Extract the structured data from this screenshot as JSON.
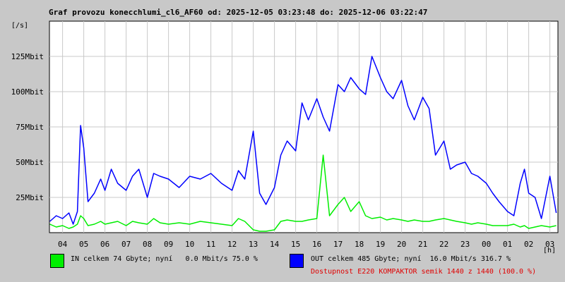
{
  "title": "Graf provozu konecchlumi_cl6_AF60 od: 2025-12-05 03:23:48 do: 2025-12-06 03:22:47",
  "y_unit": "[/s]",
  "x_unit": "[h]",
  "legend": {
    "in": {
      "text": "IN celkem 74 Gbyte; nyní   0.0 Mbit/s 75.0 %",
      "color": "#00ee00"
    },
    "out": {
      "text": "OUT celkem 485 Gbyte; nyní  16.0 Mbit/s 316.7 %",
      "color": "#0000ff"
    }
  },
  "availability": "Dostupnost E220 KOMPAKTOR semik 1440 z 1440 (100.0 %)",
  "chart_data": {
    "type": "line",
    "title": "Graf provozu konecchlumi_cl6_AF60 od: 2025-12-05 03:23:48 do: 2025-12-06 03:22:47",
    "xlabel": "[h]",
    "ylabel": "[/s]",
    "x_ticks": [
      "04",
      "05",
      "06",
      "07",
      "08",
      "09",
      "10",
      "11",
      "12",
      "13",
      "14",
      "15",
      "16",
      "17",
      "18",
      "19",
      "20",
      "21",
      "22",
      "23",
      "00",
      "01",
      "02",
      "03"
    ],
    "y_ticks": [
      "25Mbit",
      "50Mbit",
      "75Mbit",
      "100Mbit",
      "125Mbit"
    ],
    "ylim": [
      0,
      150
    ],
    "y_unit": "Mbit/s",
    "grid": true,
    "x_hours": [
      3.4,
      3.7,
      4.0,
      4.3,
      4.5,
      4.7,
      4.85,
      5.0,
      5.2,
      5.5,
      5.8,
      6.0,
      6.3,
      6.6,
      7.0,
      7.3,
      7.6,
      8.0,
      8.3,
      8.6,
      9.0,
      9.5,
      10.0,
      10.5,
      11.0,
      11.5,
      12.0,
      12.3,
      12.6,
      13.0,
      13.3,
      13.6,
      14.0,
      14.3,
      14.6,
      15.0,
      15.3,
      15.6,
      16.0,
      16.3,
      16.6,
      17.0,
      17.3,
      17.6,
      18.0,
      18.3,
      18.6,
      19.0,
      19.3,
      19.6,
      20.0,
      20.3,
      20.6,
      21.0,
      21.3,
      21.6,
      22.0,
      22.3,
      22.6,
      23.0,
      23.3,
      23.6,
      24.0,
      24.3,
      24.6,
      25.0,
      25.3,
      25.6,
      25.8,
      26.0,
      26.3,
      26.6,
      27.0,
      27.3
    ],
    "series": [
      {
        "name": "OUT",
        "color": "#0000ff",
        "values": [
          8,
          12,
          10,
          14,
          6,
          15,
          76,
          60,
          22,
          28,
          38,
          30,
          45,
          35,
          30,
          40,
          45,
          25,
          42,
          40,
          38,
          32,
          40,
          38,
          42,
          35,
          30,
          44,
          38,
          72,
          28,
          20,
          32,
          55,
          65,
          58,
          92,
          80,
          95,
          82,
          72,
          105,
          100,
          110,
          102,
          98,
          125,
          110,
          100,
          95,
          108,
          90,
          80,
          96,
          88,
          55,
          65,
          45,
          48,
          50,
          42,
          40,
          35,
          28,
          22,
          15,
          12,
          35,
          45,
          28,
          25,
          10,
          40,
          14
        ]
      },
      {
        "name": "IN",
        "color": "#00ee00",
        "values": [
          6,
          4,
          5,
          3,
          4,
          6,
          12,
          10,
          5,
          6,
          8,
          6,
          7,
          8,
          5,
          8,
          7,
          6,
          10,
          7,
          6,
          7,
          6,
          8,
          7,
          6,
          5,
          10,
          8,
          2,
          1,
          1,
          2,
          8,
          9,
          8,
          8,
          9,
          10,
          55,
          12,
          20,
          25,
          15,
          22,
          12,
          10,
          11,
          9,
          10,
          9,
          8,
          9,
          8,
          8,
          9,
          10,
          9,
          8,
          7,
          6,
          7,
          6,
          5,
          5,
          5,
          6,
          4,
          5,
          3,
          4,
          5,
          4,
          5
        ]
      }
    ]
  }
}
